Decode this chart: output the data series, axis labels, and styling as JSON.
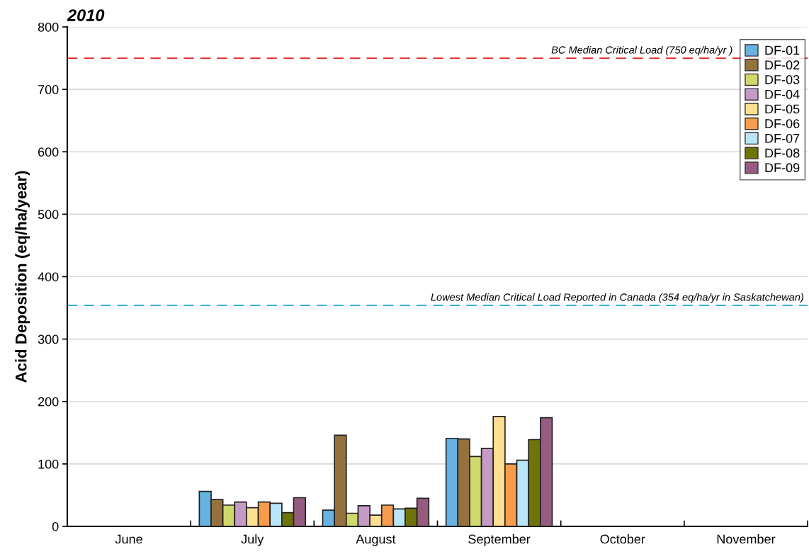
{
  "chart_data": {
    "type": "bar",
    "title": "2010",
    "ylabel": "Acid Deposition (eq/ha/year)",
    "categories": [
      "June",
      "July",
      "August",
      "September",
      "October",
      "November"
    ],
    "series": [
      {
        "name": "DF-01",
        "color": "#66b3e3",
        "values": [
          null,
          56,
          26,
          141,
          null,
          null
        ]
      },
      {
        "name": "DF-02",
        "color": "#95723d",
        "values": [
          null,
          43,
          146,
          140,
          null,
          null
        ]
      },
      {
        "name": "DF-03",
        "color": "#d0d86c",
        "values": [
          null,
          34,
          21,
          112,
          null,
          null
        ]
      },
      {
        "name": "DF-04",
        "color": "#c39bc5",
        "values": [
          null,
          39,
          33,
          125,
          null,
          null
        ]
      },
      {
        "name": "DF-05",
        "color": "#fedf92",
        "values": [
          null,
          30,
          18,
          176,
          null,
          null
        ]
      },
      {
        "name": "DF-06",
        "color": "#f79b4c",
        "values": [
          null,
          39,
          34,
          100,
          null,
          null
        ]
      },
      {
        "name": "DF-07",
        "color": "#bae4f8",
        "values": [
          null,
          37,
          28,
          106,
          null,
          null
        ]
      },
      {
        "name": "DF-08",
        "color": "#6f7408",
        "values": [
          null,
          22,
          29,
          139,
          null,
          null
        ]
      },
      {
        "name": "DF-09",
        "color": "#965c80",
        "values": [
          null,
          46,
          45,
          174,
          null,
          null
        ]
      }
    ],
    "ylim": [
      0,
      800
    ],
    "yticks": [
      0,
      100,
      200,
      300,
      400,
      500,
      600,
      700,
      800
    ],
    "grid": "y",
    "legend": "top right",
    "ref_lines": [
      {
        "axis": "y",
        "value": 750,
        "label": "BC Median Critical Load (750 eq/ha/yr )",
        "color": "#e8262b",
        "line_style": "dashed"
      },
      {
        "axis": "y",
        "value": 354,
        "label": "Lowest Median Critical Load Reported in Canada (354 eq/ha/yr in Saskatchewan)",
        "color": "#27a8e0",
        "line_style": "dashed"
      }
    ]
  }
}
